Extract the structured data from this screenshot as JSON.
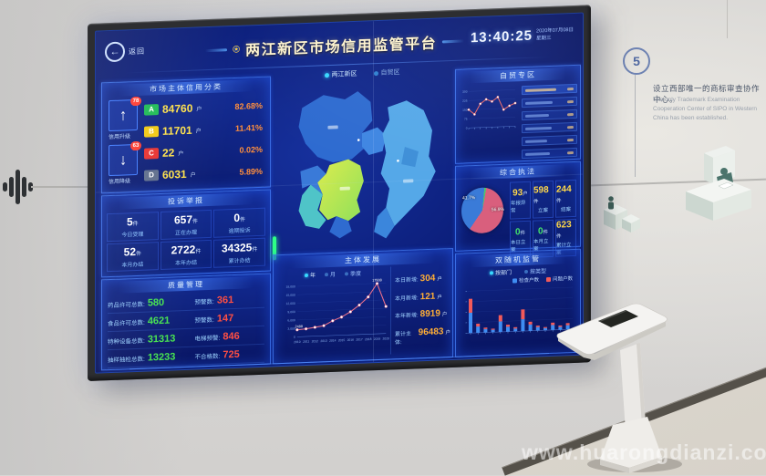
{
  "watermark": "www.huarongdianzi.com",
  "wall": {
    "step_number": "5",
    "milestone_zh": "设立西部唯一的商标审查协作中心。",
    "milestone_en": "The only Trademark Examination Cooperation Center of SIPO in Western China has been established."
  },
  "screen": {
    "back_label": "返回",
    "title": "两江新区市场信用监管平台",
    "clock": {
      "time": "13:40:25",
      "date": "2020年07月08日",
      "weekday": "星期三"
    },
    "map": {
      "tabs": [
        {
          "label": "两江新区",
          "active": true
        },
        {
          "label": "自贸区",
          "active": false
        }
      ]
    },
    "credit": {
      "title": "市场主体信用分类",
      "up_badge": "78",
      "up_label": "信用升级",
      "up_arrow": "↑",
      "down_badge": "63",
      "down_label": "信用降级",
      "down_arrow": "↓",
      "rows": [
        {
          "grade": "A",
          "count": "84760",
          "unit": "户",
          "pct": "82.68%",
          "color": "#1db954"
        },
        {
          "grade": "B",
          "count": "11701",
          "unit": "户",
          "pct": "11.41%",
          "color": "#f2c911"
        },
        {
          "grade": "C",
          "count": "22",
          "unit": "户",
          "pct": "0.02%",
          "color": "#e8312f"
        },
        {
          "grade": "D",
          "count": "6031",
          "unit": "户",
          "pct": "5.89%",
          "color": "#5f6e8c"
        }
      ]
    },
    "complaints": {
      "title": "投诉举报",
      "cells": [
        {
          "value": "5",
          "unit": "件",
          "label": "今日受理"
        },
        {
          "value": "657",
          "unit": "件",
          "label": "正在办理"
        },
        {
          "value": "0",
          "unit": "件",
          "label": "逾期投诉"
        },
        {
          "value": "52",
          "unit": "件",
          "label": "本月办结"
        },
        {
          "value": "2722",
          "unit": "件",
          "label": "本年办结"
        },
        {
          "value": "34325",
          "unit": "件",
          "label": "累计办结"
        }
      ]
    },
    "quality": {
      "title": "质量管理",
      "rows": [
        {
          "label": "药品许可总数:",
          "value": "580",
          "label2": "预警数:",
          "value2": "361"
        },
        {
          "label": "食品许可总数:",
          "value": "4621",
          "label2": "预警数:",
          "value2": "147"
        },
        {
          "label": "特种设备总数:",
          "value": "31313",
          "label2": "电梯预警:",
          "value2": "846"
        },
        {
          "label": "抽样抽检总数:",
          "value": "13233",
          "label2": "不合格数:",
          "value2": "725"
        }
      ]
    },
    "development": {
      "title": "主体发展",
      "legend": [
        "年",
        "月",
        "季度"
      ],
      "stats": [
        {
          "label": "本日新增:",
          "value": "304",
          "unit": "户"
        },
        {
          "label": "本月新增:",
          "value": "121",
          "unit": "户"
        },
        {
          "label": "本年新增:",
          "value": "8919",
          "unit": "户"
        },
        {
          "label": "累计主体:",
          "value": "96483",
          "unit": "户"
        }
      ]
    },
    "trade": {
      "title": "自贸专区",
      "list_row_count": 6
    },
    "enforcement": {
      "title": "综合执法",
      "cells": [
        {
          "value": "93",
          "unit": "户",
          "label": "年报异常",
          "green": false
        },
        {
          "value": "598",
          "unit": "件",
          "label": "立案",
          "green": false
        },
        {
          "value": "244",
          "unit": "件",
          "label": "结案",
          "green": false
        },
        {
          "value": "0",
          "unit": "件",
          "label": "本日立案",
          "green": true
        },
        {
          "value": "0",
          "unit": "件",
          "label": "本月立案",
          "green": true
        },
        {
          "value": "623",
          "unit": "件",
          "label": "累计立案",
          "green": false
        }
      ]
    },
    "random": {
      "title": "双随机监管",
      "tabs": [
        "按部门",
        "按类型"
      ],
      "legend": [
        {
          "label": "检查户数",
          "color": "#3f8df2"
        },
        {
          "label": "问题户数",
          "color": "#f25a5a"
        }
      ]
    }
  },
  "chart_data": [
    {
      "type": "line",
      "title": "主体发展",
      "x": [
        "2010",
        "2011",
        "2012",
        "2013",
        "2014",
        "2015",
        "2016",
        "2017",
        "2018",
        "2019",
        "2020"
      ],
      "values": [
        2488,
        2716,
        3150,
        3620,
        5230,
        6450,
        8210,
        10480,
        13260,
        17938,
        9648
      ],
      "yticks": [
        0,
        3000,
        6000,
        9000,
        12000,
        15000,
        18000
      ],
      "ylim": [
        0,
        18000
      ],
      "line_color": "#f0718a",
      "point_labels": {
        "first": "2488",
        "peak": "17938"
      }
    },
    {
      "type": "line",
      "title": "自贸专区趋势",
      "values": [
        150,
        110,
        195,
        230,
        210,
        245,
        140,
        170,
        190
      ],
      "yticks": [
        0,
        75,
        150,
        225,
        300
      ],
      "ylim": [
        0,
        300
      ],
      "line_color": "#ef6a6a"
    },
    {
      "type": "pie",
      "title": "综合执法",
      "values": [
        56.9,
        41.7,
        1.4
      ],
      "labels": [
        "56.9%",
        "41.7%",
        "1.4%"
      ],
      "colors": [
        "#d95f7d",
        "#3a7bd8",
        "#52c46a"
      ]
    },
    {
      "type": "bar",
      "title": "双随机监管",
      "stacked": true,
      "categories": [
        "1",
        "2",
        "3",
        "4",
        "5",
        "6",
        "7",
        "8",
        "9",
        "10",
        "11",
        "12",
        "13",
        "14"
      ],
      "series": [
        {
          "name": "检查户数",
          "color": "#3f8df2",
          "values": [
            58,
            18,
            10,
            7,
            30,
            14,
            8,
            34,
            18,
            10,
            6,
            14,
            8,
            12
          ]
        },
        {
          "name": "问题户数",
          "color": "#f25a5a",
          "values": [
            40,
            8,
            4,
            3,
            18,
            6,
            4,
            28,
            8,
            4,
            3,
            7,
            4,
            6
          ]
        }
      ],
      "ylim": [
        0,
        120
      ]
    }
  ]
}
